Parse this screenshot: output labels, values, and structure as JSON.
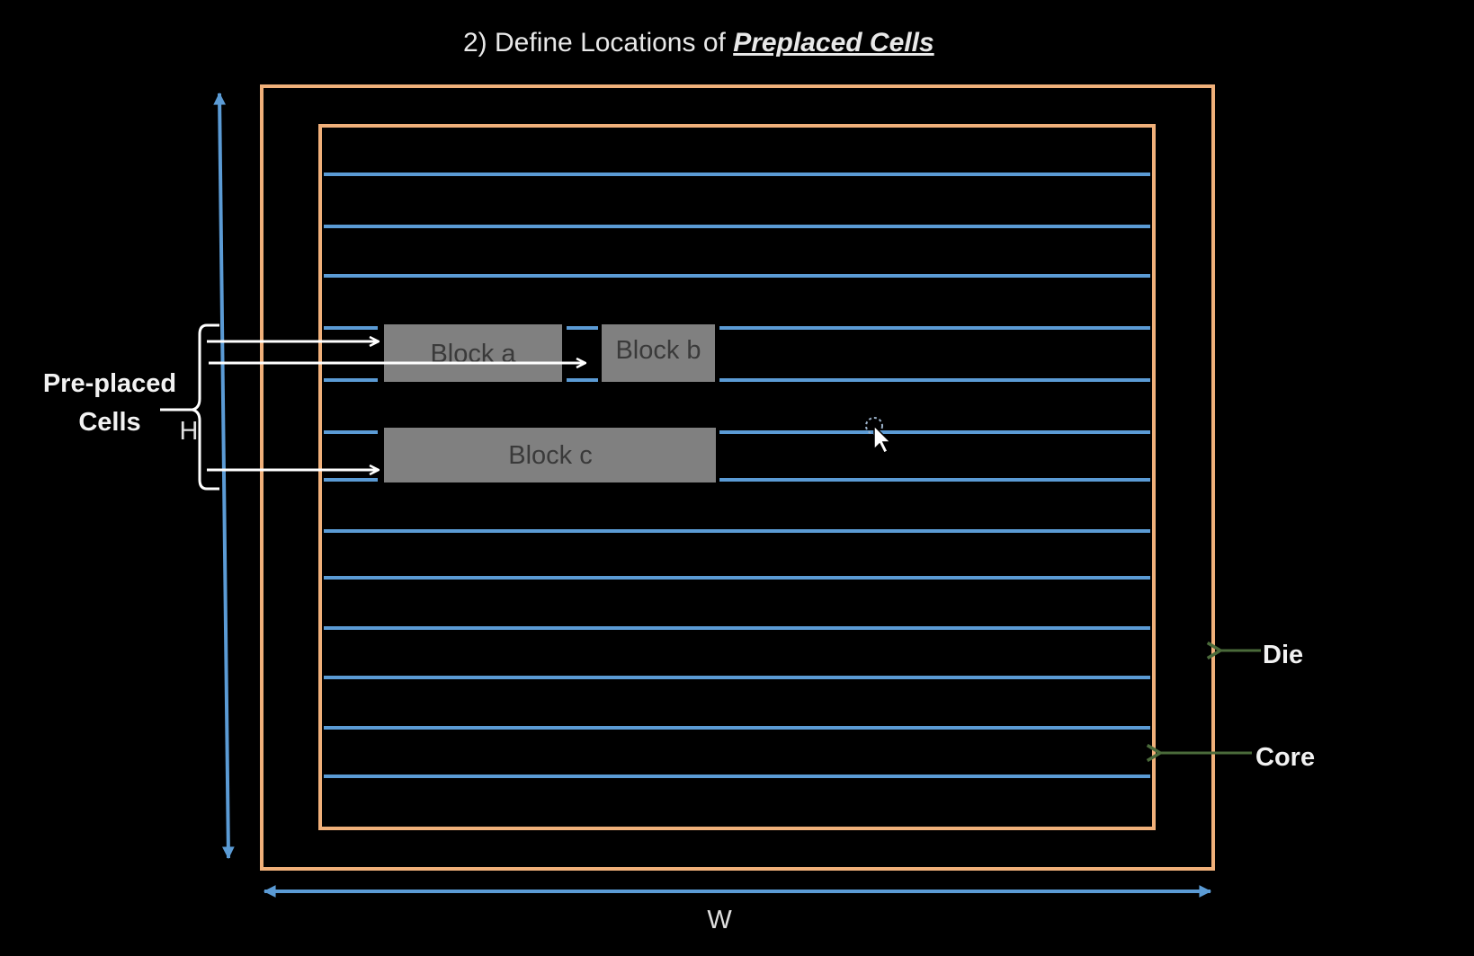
{
  "title": {
    "prefix": "2) Define Locations of ",
    "emphasis": "Preplaced Cells"
  },
  "labels": {
    "pre_placed_line1": "Pre-placed",
    "pre_placed_line2": "Cells",
    "h": "H",
    "w": "W",
    "die": "Die",
    "core": "Core"
  },
  "blocks": {
    "a": "Block a",
    "b": "Block b",
    "c": "Block c"
  },
  "colors": {
    "background": "#000000",
    "die_core_border": "#f0b07a",
    "row_lines": "#5b9bd5",
    "dimension_arrows": "#5b9bd5",
    "blocks_fill": "#808080",
    "pointer_arrows": "#ffffff",
    "die_core_pointers": "#4a6a3a"
  },
  "icons": {
    "cursor": "mouse-pointer-icon"
  }
}
